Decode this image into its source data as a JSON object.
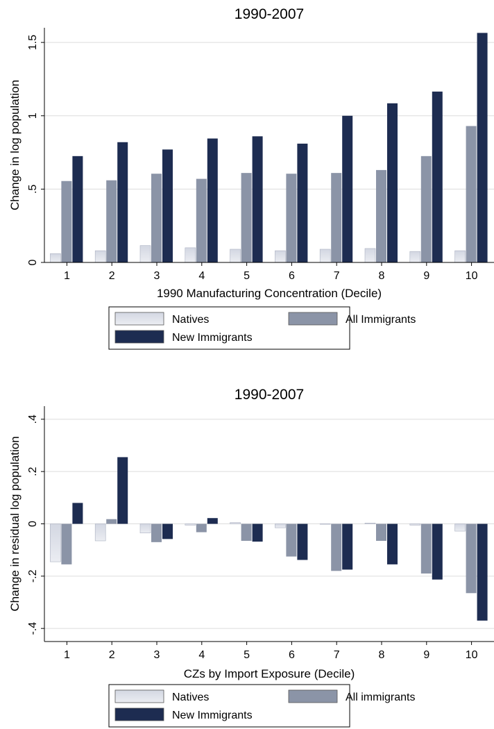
{
  "colors": {
    "natives_top": "#d3d7e2",
    "natives_bottom": "#ebedf2",
    "all_immigrants": "#8b94a7",
    "new_immigrants": "#1d2c51",
    "grid": "#dcdcdc",
    "border": "#000000"
  },
  "chart_data": [
    {
      "type": "bar",
      "title": "1990-2007",
      "xlabel": "1990 Manufacturing Concentration (Decile)",
      "ylabel": "Change in log population",
      "categories": [
        "1",
        "2",
        "3",
        "4",
        "5",
        "6",
        "7",
        "8",
        "9",
        "10"
      ],
      "ylim": [
        0,
        1.6
      ],
      "yticks": [
        0,
        0.5,
        1,
        1.5
      ],
      "ytick_labels": [
        "0",
        ".5",
        "1",
        "1.5"
      ],
      "grid": true,
      "legend_position": "bottom",
      "series": [
        {
          "name": "Natives",
          "values": [
            0.06,
            0.08,
            0.115,
            0.1,
            0.09,
            0.08,
            0.09,
            0.095,
            0.075,
            0.08
          ]
        },
        {
          "name": "All Immigrants",
          "values": [
            0.555,
            0.56,
            0.605,
            0.57,
            0.61,
            0.605,
            0.61,
            0.63,
            0.725,
            0.93
          ]
        },
        {
          "name": "New Immigrants",
          "values": [
            0.725,
            0.82,
            0.77,
            0.845,
            0.86,
            0.81,
            1.0,
            1.085,
            1.165,
            1.565
          ]
        }
      ]
    },
    {
      "type": "bar",
      "title": "1990-2007",
      "xlabel": "CZs by Import Exposure (Decile)",
      "ylabel": "Change in residual log population",
      "categories": [
        "1",
        "2",
        "3",
        "4",
        "5",
        "6",
        "7",
        "8",
        "9",
        "10"
      ],
      "ylim": [
        -0.45,
        0.45
      ],
      "yticks": [
        -0.4,
        -0.2,
        0,
        0.2,
        0.4
      ],
      "ytick_labels": [
        "-.4",
        "-.2",
        "0",
        ".2",
        ".4"
      ],
      "grid": true,
      "legend_position": "bottom",
      "series": [
        {
          "name": "Natives",
          "values": [
            -0.145,
            -0.065,
            -0.035,
            -0.005,
            0.005,
            -0.015,
            0.0,
            0.003,
            -0.005,
            -0.028
          ]
        },
        {
          "name": "All immigrants",
          "values": [
            -0.155,
            0.018,
            -0.07,
            -0.032,
            -0.065,
            -0.125,
            -0.18,
            -0.065,
            -0.19,
            -0.265
          ]
        },
        {
          "name": "New Immigrants",
          "values": [
            0.08,
            0.255,
            -0.058,
            0.022,
            -0.068,
            -0.138,
            -0.175,
            -0.155,
            -0.213,
            -0.37
          ]
        }
      ]
    }
  ]
}
